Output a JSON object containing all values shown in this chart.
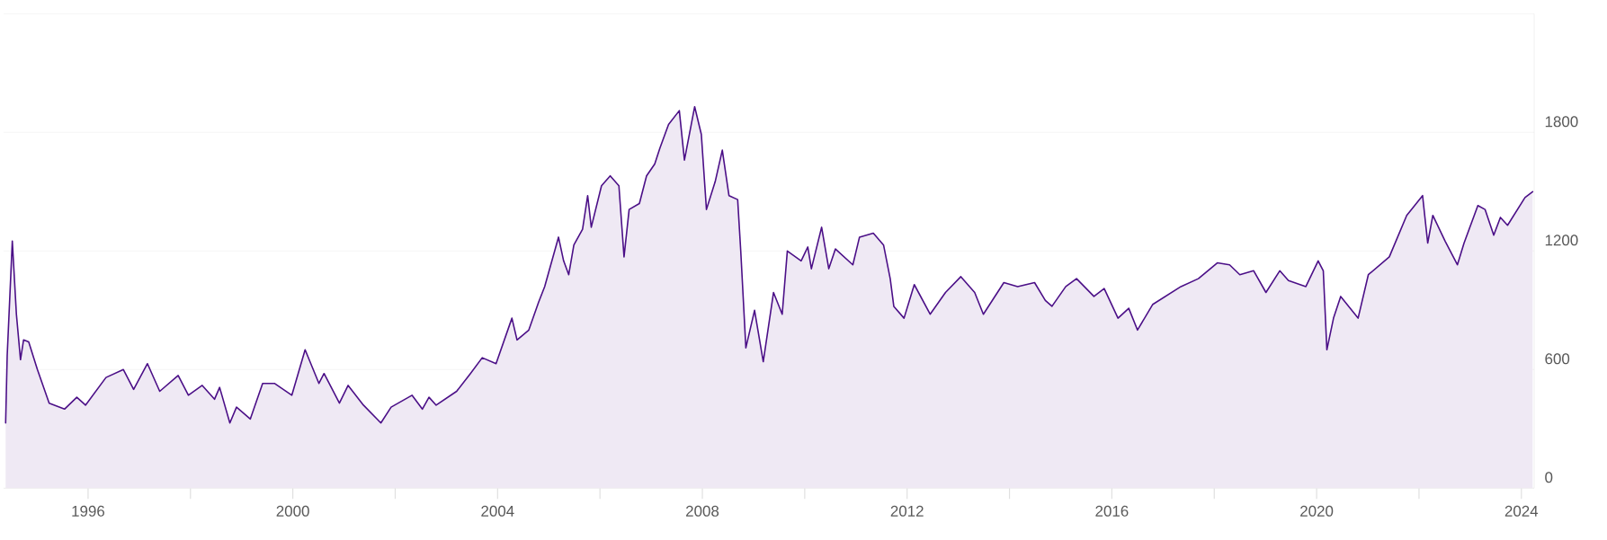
{
  "chart_data": {
    "type": "area",
    "color": "#4b0f87",
    "grid": "y",
    "marker": "none",
    "line_style": "solid",
    "xlim": [
      1994.35,
      2024.25
    ],
    "ylim": [
      0,
      2400
    ],
    "xticks": [
      1996,
      {
        "value": 1998,
        "label": null
      },
      2000,
      {
        "value": 2002,
        "label": null
      },
      2004,
      {
        "value": 2006,
        "label": null
      },
      2008,
      {
        "value": 2010,
        "label": null
      },
      2012,
      {
        "value": 2014,
        "label": null
      },
      2016,
      {
        "value": 2018,
        "label": null
      },
      2020,
      {
        "value": 2022,
        "label": null
      },
      2024
    ],
    "yticks": [
      0,
      600,
      1200,
      1800,
      {
        "value": 2400,
        "label": null
      }
    ],
    "x": [
      1994.39,
      1994.42,
      1994.52,
      1994.6,
      1994.68,
      1994.74,
      1994.84,
      1995.01,
      1995.24,
      1995.54,
      1995.78,
      1995.95,
      1996.35,
      1996.69,
      1996.89,
      1997.16,
      1997.4,
      1997.76,
      1997.96,
      1998.23,
      1998.47,
      1998.57,
      1998.77,
      1998.9,
      1999.17,
      1999.41,
      1999.64,
      1999.98,
      2000.24,
      2000.51,
      2000.61,
      2000.91,
      2001.08,
      2001.38,
      2001.72,
      2001.92,
      2002.33,
      2002.53,
      2002.66,
      2002.8,
      2003.2,
      2003.47,
      2003.7,
      2003.97,
      2004.28,
      2004.38,
      2004.61,
      2004.8,
      2004.92,
      2005.19,
      2005.29,
      2005.39,
      2005.49,
      2005.66,
      2005.76,
      2005.83,
      2006.03,
      2006.2,
      2006.37,
      2006.47,
      2006.57,
      2006.77,
      2006.91,
      2007.07,
      2007.17,
      2007.34,
      2007.55,
      2007.65,
      2007.85,
      2007.98,
      2008.08,
      2008.25,
      2008.39,
      2008.52,
      2008.69,
      2008.75,
      2008.85,
      2009.02,
      2009.19,
      2009.39,
      2009.56,
      2009.66,
      2009.93,
      2010.06,
      2010.13,
      2010.33,
      2010.47,
      2010.6,
      2010.94,
      2011.07,
      2011.34,
      2011.54,
      2011.67,
      2011.74,
      2011.94,
      2012.14,
      2012.45,
      2012.75,
      2013.05,
      2013.32,
      2013.49,
      2013.89,
      2014.16,
      2014.49,
      2014.7,
      2014.83,
      2015.1,
      2015.31,
      2015.65,
      2015.85,
      2016.12,
      2016.33,
      2016.5,
      2016.8,
      2017.35,
      2017.69,
      2018.06,
      2018.3,
      2018.5,
      2018.77,
      2019.01,
      2019.28,
      2019.45,
      2019.79,
      2020.03,
      2020.13,
      2020.2,
      2020.33,
      2020.47,
      2020.81,
      2021.01,
      2021.42,
      2021.76,
      2022.07,
      2022.17,
      2022.27,
      2022.51,
      2022.75,
      2022.88,
      2023.15,
      2023.29,
      2023.46,
      2023.59,
      2023.73,
      2024.07,
      2024.22
    ],
    "values": [
      330,
      670,
      1250,
      880,
      650,
      750,
      740,
      600,
      430,
      400,
      460,
      420,
      560,
      600,
      500,
      630,
      490,
      570,
      470,
      520,
      450,
      510,
      330,
      410,
      350,
      530,
      530,
      470,
      700,
      530,
      580,
      430,
      520,
      420,
      330,
      410,
      470,
      400,
      460,
      420,
      490,
      580,
      660,
      630,
      860,
      750,
      800,
      940,
      1020,
      1270,
      1150,
      1080,
      1230,
      1310,
      1480,
      1320,
      1530,
      1580,
      1530,
      1170,
      1410,
      1440,
      1580,
      1640,
      1720,
      1840,
      1910,
      1660,
      1930,
      1790,
      1410,
      1550,
      1710,
      1480,
      1460,
      1200,
      710,
      900,
      640,
      990,
      880,
      1200,
      1150,
      1220,
      1110,
      1320,
      1110,
      1210,
      1130,
      1270,
      1290,
      1230,
      1060,
      920,
      860,
      1030,
      880,
      990,
      1070,
      990,
      880,
      1040,
      1020,
      1040,
      950,
      920,
      1020,
      1060,
      970,
      1010,
      860,
      910,
      800,
      930,
      1020,
      1060,
      1140,
      1130,
      1080,
      1100,
      990,
      1100,
      1050,
      1020,
      1150,
      1100,
      700,
      860,
      970,
      860,
      1080,
      1170,
      1380,
      1480,
      1240,
      1380,
      1250,
      1130,
      1240,
      1430,
      1410,
      1280,
      1370,
      1330,
      1470,
      1500
    ]
  }
}
